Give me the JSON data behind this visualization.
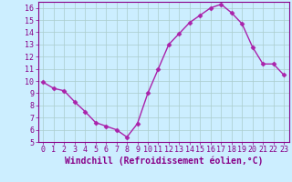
{
  "x": [
    0,
    1,
    2,
    3,
    4,
    5,
    6,
    7,
    8,
    9,
    10,
    11,
    12,
    13,
    14,
    15,
    16,
    17,
    18,
    19,
    20,
    21,
    22,
    23
  ],
  "y": [
    9.9,
    9.4,
    9.2,
    8.3,
    7.5,
    6.6,
    6.3,
    6.0,
    5.4,
    6.5,
    9.0,
    11.0,
    13.0,
    13.9,
    14.8,
    15.4,
    16.0,
    16.3,
    15.6,
    14.7,
    12.8,
    11.4,
    11.4,
    10.5
  ],
  "line_color": "#aa22aa",
  "marker": "D",
  "marker_size": 2.5,
  "bg_color": "#cceeff",
  "grid_color": "#aacccc",
  "xlabel": "Windchill (Refroidissement éolien,°C)",
  "ylim": [
    5,
    16.5
  ],
  "xlim": [
    -0.5,
    23.5
  ],
  "yticks": [
    5,
    6,
    7,
    8,
    9,
    10,
    11,
    12,
    13,
    14,
    15,
    16
  ],
  "xticks": [
    0,
    1,
    2,
    3,
    4,
    5,
    6,
    7,
    8,
    9,
    10,
    11,
    12,
    13,
    14,
    15,
    16,
    17,
    18,
    19,
    20,
    21,
    22,
    23
  ],
  "xlabel_fontsize": 7,
  "tick_fontsize": 6,
  "line_width": 1.0,
  "text_color": "#880088",
  "spine_color": "#880088"
}
